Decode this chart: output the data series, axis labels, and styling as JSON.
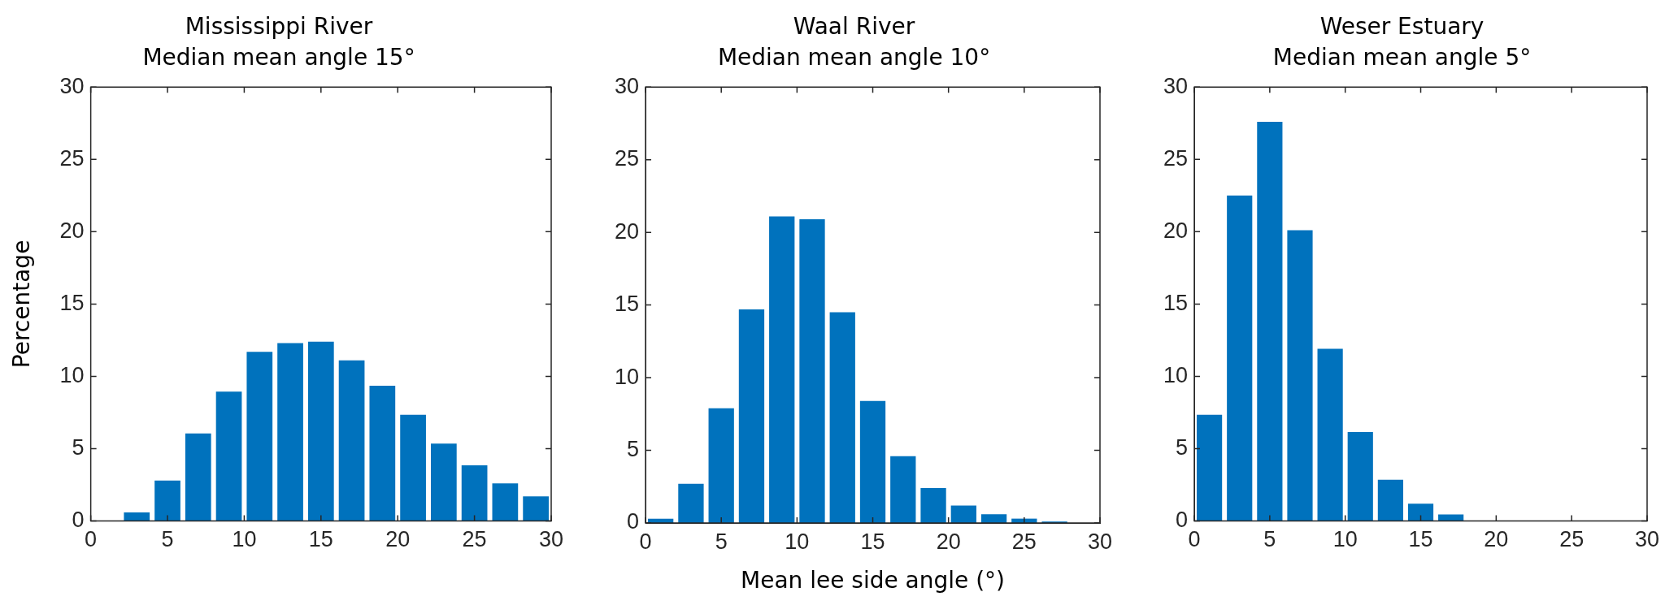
{
  "chart_data": [
    {
      "type": "histogram",
      "title": "Mississippi River",
      "subtitle": "Median mean angle 15°",
      "ylabel": "Percentage",
      "bins": [
        0,
        2,
        4,
        6,
        8,
        10,
        12,
        14,
        16,
        18,
        20,
        22,
        24,
        26,
        28,
        30
      ],
      "values": [
        0,
        0.6,
        2.8,
        6.05,
        8.95,
        11.7,
        12.3,
        12.4,
        11.1,
        9.35,
        7.35,
        5.35,
        3.85,
        2.6,
        1.7
      ],
      "color": "#0072bd",
      "xlim": [
        0,
        30
      ],
      "xticks": [
        0,
        5,
        10,
        15,
        20,
        25,
        30
      ],
      "ylim": [
        0,
        30
      ],
      "yticks": [
        0,
        5,
        10,
        15,
        20,
        25,
        30
      ]
    },
    {
      "type": "histogram",
      "title": "Waal River",
      "subtitle": "Median mean angle 10°",
      "xlabel": "Mean lee side angle (°)",
      "bins": [
        0,
        2,
        4,
        6,
        8,
        10,
        12,
        14,
        16,
        18,
        20,
        22,
        24,
        26,
        28,
        30
      ],
      "values": [
        0.3,
        2.7,
        7.9,
        14.7,
        21.1,
        20.9,
        14.5,
        8.4,
        4.6,
        2.4,
        1.2,
        0.6,
        0.3,
        0.1,
        null
      ],
      "color": "#0072bd",
      "xlim": [
        0,
        30
      ],
      "xticks": [
        0,
        5,
        10,
        15,
        20,
        25,
        30
      ],
      "ylim": [
        0,
        30
      ],
      "yticks": [
        0,
        5,
        10,
        15,
        20,
        25,
        30
      ]
    },
    {
      "type": "histogram",
      "title": "Weser Estuary",
      "subtitle": "Median mean angle 5°",
      "bins": [
        0,
        2,
        4,
        6,
        8,
        10,
        12,
        14,
        16,
        18,
        20,
        22,
        24,
        26,
        28,
        30
      ],
      "values": [
        7.35,
        22.5,
        27.6,
        20.1,
        11.9,
        6.15,
        2.85,
        1.2,
        0.45,
        null,
        0,
        0,
        0,
        null,
        null
      ],
      "color": "#0072bd",
      "xlim": [
        0,
        30
      ],
      "xticks": [
        0,
        5,
        10,
        15,
        20,
        25,
        30
      ],
      "ylim": [
        0,
        30
      ],
      "yticks": [
        0,
        5,
        10,
        15,
        20,
        25,
        30
      ]
    }
  ]
}
